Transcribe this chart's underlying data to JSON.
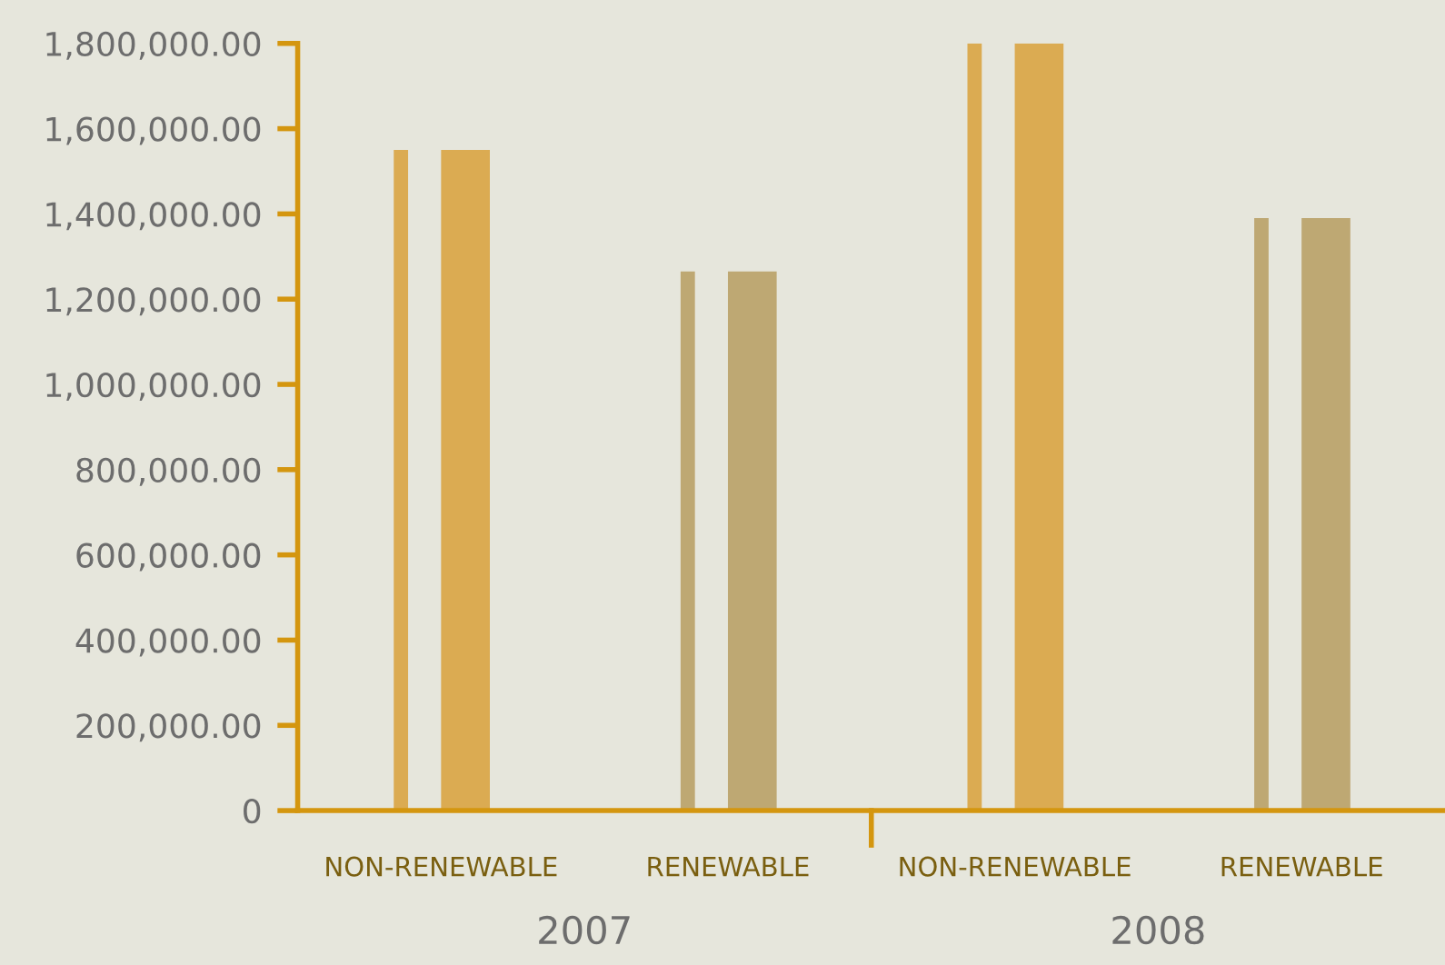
{
  "chart_data": {
    "type": "bar",
    "categories": [
      "NON-RENEWABLE",
      "RENEWABLE",
      "NON-RENEWABLE",
      "RENEWABLE"
    ],
    "series": [
      {
        "colors": [
          "#dbab52",
          "#bea873",
          "#dbab52",
          "#bea873"
        ],
        "values": [
          1550000,
          1265000,
          1800000,
          1390000
        ]
      },
      {
        "colors": [
          "#dbab52",
          "#bea873",
          "#dbab52",
          "#bea873"
        ],
        "values": [
          1550000,
          1265000,
          1800000,
          1390000
        ]
      }
    ],
    "ylim": [
      0,
      1800000
    ],
    "yticks": [
      {
        "value": 0,
        "label": "0"
      },
      {
        "value": 200000,
        "label": "200,000.00"
      },
      {
        "value": 400000,
        "label": "400,000.00"
      },
      {
        "value": 600000,
        "label": "600,000.00"
      },
      {
        "value": 800000,
        "label": "800,000.00"
      },
      {
        "value": 1000000,
        "label": "1,000,000.00"
      },
      {
        "value": 1200000,
        "label": "1,200,000.00"
      },
      {
        "value": 1400000,
        "label": "1,400,000.00"
      },
      {
        "value": 1600000,
        "label": "1,600,000.00"
      },
      {
        "value": 1800000,
        "label": "1,800,000.00"
      }
    ],
    "annotations": [
      "2007",
      "2008"
    ],
    "grid": false,
    "legend": false
  }
}
